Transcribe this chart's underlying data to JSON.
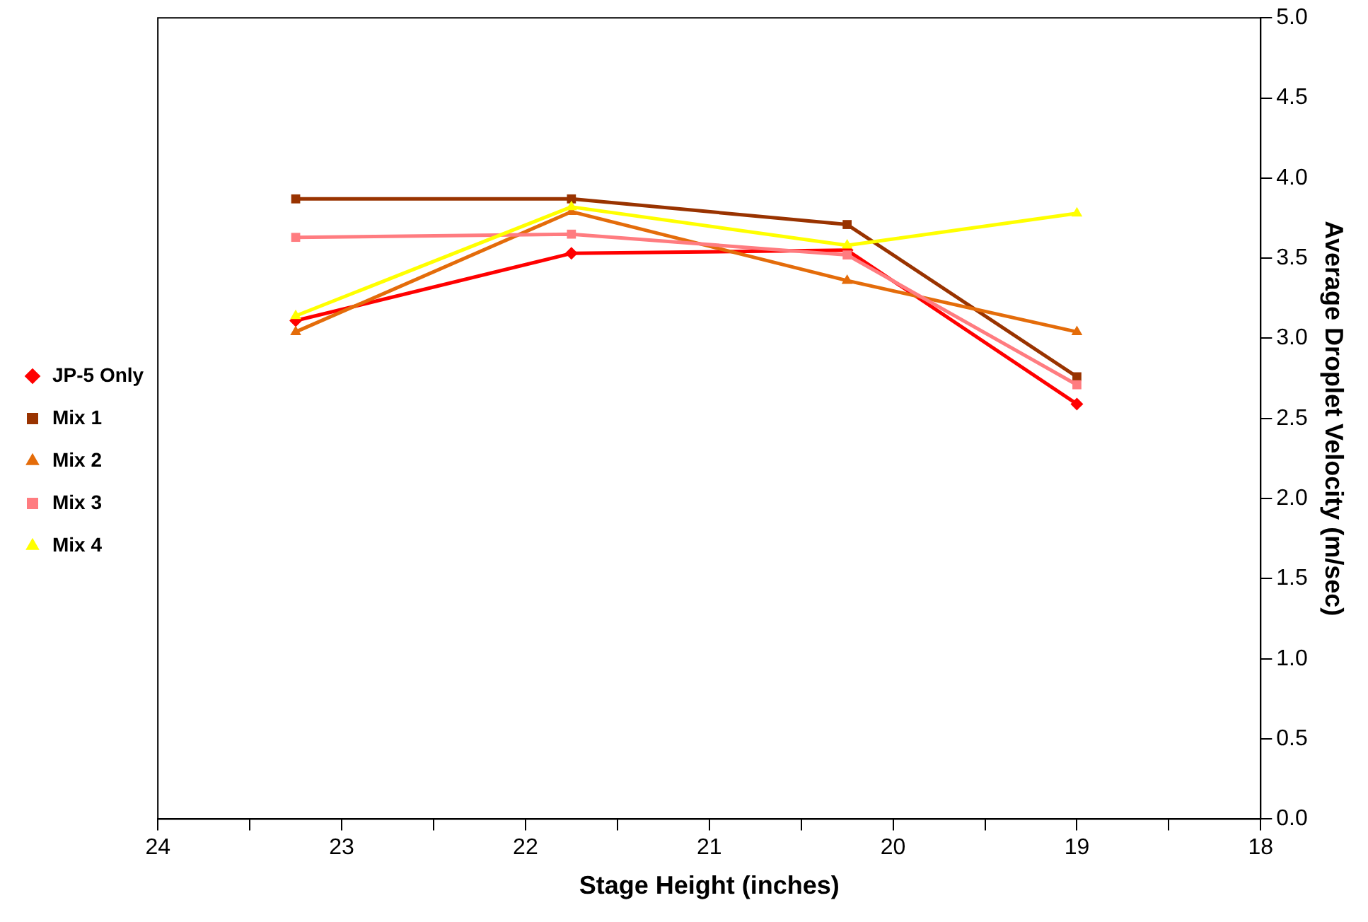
{
  "chart_data": {
    "type": "line",
    "xlabel": "Stage Height (inches)",
    "ylabel": "Average Droplet Velocity (m/sec)",
    "x": [
      23.25,
      21.75,
      20.25,
      19
    ],
    "xlim": [
      24,
      18
    ],
    "xticks": [
      24,
      {
        "value": 23.5,
        "label": null
      },
      23,
      {
        "value": 22.5,
        "label": null
      },
      22,
      {
        "value": 21.5,
        "label": null
      },
      21,
      {
        "value": 20.5,
        "label": null
      },
      20,
      {
        "value": 19.5,
        "label": null
      },
      19,
      {
        "value": 18.5,
        "label": null
      },
      18
    ],
    "ylim": [
      0,
      5
    ],
    "yticks": [
      {
        "value": 0,
        "label": "0.0"
      },
      {
        "value": 0.5,
        "label": "0.5"
      },
      {
        "value": 1,
        "label": "1.0"
      },
      {
        "value": 1.5,
        "label": "1.5"
      },
      {
        "value": 2,
        "label": "2.0"
      },
      {
        "value": 2.5,
        "label": "2.5"
      },
      {
        "value": 3,
        "label": "3.0"
      },
      {
        "value": 3.5,
        "label": "3.5"
      },
      {
        "value": 4,
        "label": "4.0"
      },
      {
        "value": 4.5,
        "label": "4.5"
      },
      {
        "value": 5,
        "label": "5.0"
      }
    ],
    "grid": false,
    "legend": "left",
    "line_style": "solid",
    "series": [
      {
        "name": "JP-5 Only",
        "color": "#ff0000",
        "marker": "diamond",
        "values": [
          3.11,
          3.53,
          3.55,
          2.59
        ]
      },
      {
        "name": "Mix 1",
        "color": "#993300",
        "marker": "square",
        "values": [
          3.87,
          3.87,
          3.71,
          2.76
        ]
      },
      {
        "name": "Mix 2",
        "color": "#e46c0a",
        "marker": "triangle",
        "values": [
          3.04,
          3.79,
          3.36,
          3.04
        ]
      },
      {
        "name": "Mix 3",
        "color": "#ff7c80",
        "marker": "square",
        "values": [
          3.63,
          3.65,
          3.52,
          2.71
        ]
      },
      {
        "name": "Mix 4",
        "color": "#ffff00",
        "marker": "triangle",
        "values": [
          3.14,
          3.82,
          3.58,
          3.78
        ]
      }
    ]
  }
}
